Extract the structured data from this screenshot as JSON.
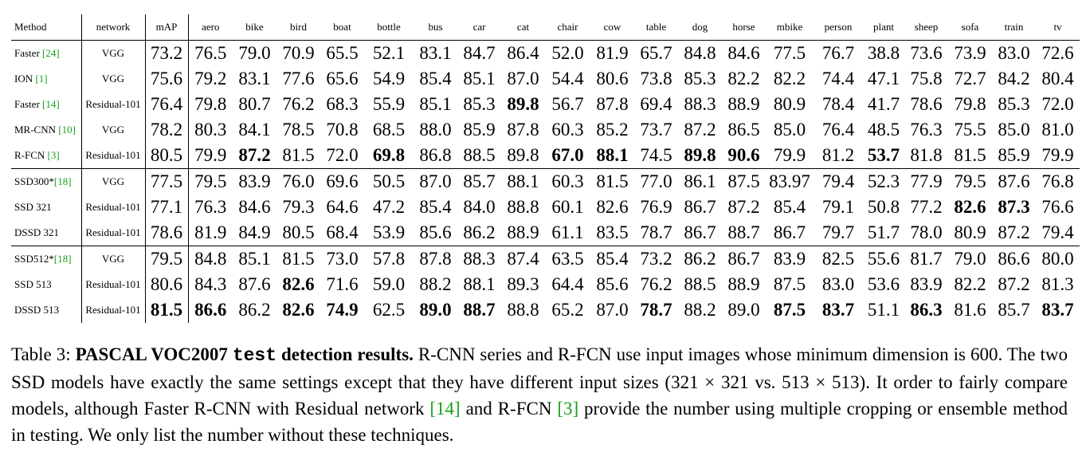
{
  "table": {
    "headers": [
      "Method",
      "network",
      "mAP",
      "aero",
      "bike",
      "bird",
      "boat",
      "bottle",
      "bus",
      "car",
      "cat",
      "chair",
      "cow",
      "table",
      "dog",
      "horse",
      "mbike",
      "person",
      "plant",
      "sheep",
      "sofa",
      "train",
      "tv"
    ],
    "groups": [
      [
        {
          "method": "Faster ",
          "ref": "[24]",
          "network": "VGG",
          "values": [
            "73.2",
            "76.5",
            "79.0",
            "70.9",
            "65.5",
            "52.1",
            "83.1",
            "84.7",
            "86.4",
            "52.0",
            "81.9",
            "65.7",
            "84.8",
            "84.6",
            "77.5",
            "76.7",
            "38.8",
            "73.6",
            "73.9",
            "83.0",
            "72.6"
          ],
          "bold": []
        },
        {
          "method": "ION ",
          "ref": "[1]",
          "network": "VGG",
          "values": [
            "75.6",
            "79.2",
            "83.1",
            "77.6",
            "65.6",
            "54.9",
            "85.4",
            "85.1",
            "87.0",
            "54.4",
            "80.6",
            "73.8",
            "85.3",
            "82.2",
            "82.2",
            "74.4",
            "47.1",
            "75.8",
            "72.7",
            "84.2",
            "80.4"
          ],
          "bold": []
        },
        {
          "method": "Faster ",
          "ref": "[14]",
          "network": "Residual-101",
          "values": [
            "76.4",
            "79.8",
            "80.7",
            "76.2",
            "68.3",
            "55.9",
            "85.1",
            "85.3",
            "89.8",
            "56.7",
            "87.8",
            "69.4",
            "88.3",
            "88.9",
            "80.9",
            "78.4",
            "41.7",
            "78.6",
            "79.8",
            "85.3",
            "72.0"
          ],
          "bold": [
            8
          ]
        },
        {
          "method": "MR-CNN ",
          "ref": "[10]",
          "network": "VGG",
          "values": [
            "78.2",
            "80.3",
            "84.1",
            "78.5",
            "70.8",
            "68.5",
            "88.0",
            "85.9",
            "87.8",
            "60.3",
            "85.2",
            "73.7",
            "87.2",
            "86.5",
            "85.0",
            "76.4",
            "48.5",
            "76.3",
            "75.5",
            "85.0",
            "81.0"
          ],
          "bold": []
        },
        {
          "method": "R-FCN ",
          "ref": "[3]",
          "network": "Residual-101",
          "values": [
            "80.5",
            "79.9",
            "87.2",
            "81.5",
            "72.0",
            "69.8",
            "86.8",
            "88.5",
            "89.8",
            "67.0",
            "88.1",
            "74.5",
            "89.8",
            "90.6",
            "79.9",
            "81.2",
            "53.7",
            "81.8",
            "81.5",
            "85.9",
            "79.9"
          ],
          "bold": [
            2,
            5,
            9,
            10,
            12,
            13,
            16
          ]
        }
      ],
      [
        {
          "method": "SSD300*",
          "ref": "[18]",
          "network": "VGG",
          "values": [
            "77.5",
            "79.5",
            "83.9",
            "76.0",
            "69.6",
            "50.5",
            "87.0",
            "85.7",
            "88.1",
            "60.3",
            "81.5",
            "77.0",
            "86.1",
            "87.5",
            "83.97",
            "79.4",
            "52.3",
            "77.9",
            "79.5",
            "87.6",
            "76.8"
          ],
          "bold": []
        },
        {
          "method": "SSD 321",
          "ref": "",
          "network": "Residual-101",
          "values": [
            "77.1",
            "76.3",
            "84.6",
            "79.3",
            "64.6",
            "47.2",
            "85.4",
            "84.0",
            "88.8",
            "60.1",
            "82.6",
            "76.9",
            "86.7",
            "87.2",
            "85.4",
            "79.1",
            "50.8",
            "77.2",
            "82.6",
            "87.3",
            "76.6"
          ],
          "bold": [
            18,
            19
          ]
        },
        {
          "method": "DSSD 321",
          "ref": "",
          "network": "Residual-101",
          "values": [
            "78.6",
            "81.9",
            "84.9",
            "80.5",
            "68.4",
            "53.9",
            "85.6",
            "86.2",
            "88.9",
            "61.1",
            "83.5",
            "78.7",
            "86.7",
            "88.7",
            "86.7",
            "79.7",
            "51.7",
            "78.0",
            "80.9",
            "87.2",
            "79.4"
          ],
          "bold": []
        }
      ],
      [
        {
          "method": "SSD512*",
          "ref": "[18]",
          "network": "VGG",
          "values": [
            "79.5",
            "84.8",
            "85.1",
            "81.5",
            "73.0",
            "57.8",
            "87.8",
            "88.3",
            "87.4",
            "63.5",
            "85.4",
            "73.2",
            "86.2",
            "86.7",
            "83.9",
            "82.5",
            "55.6",
            "81.7",
            "79.0",
            "86.6",
            "80.0"
          ],
          "bold": []
        },
        {
          "method": "SSD 513",
          "ref": "",
          "network": "Residual-101",
          "values": [
            "80.6",
            "84.3",
            "87.6",
            "82.6",
            "71.6",
            "59.0",
            "88.2",
            "88.1",
            "89.3",
            "64.4",
            "85.6",
            "76.2",
            "88.5",
            "88.9",
            "87.5",
            "83.0",
            "53.6",
            "83.9",
            "82.2",
            "87.2",
            "81.3"
          ],
          "bold": [
            3
          ]
        },
        {
          "method": "DSSD 513",
          "ref": "",
          "network": "Residual-101",
          "values": [
            "81.5",
            "86.6",
            "86.2",
            "82.6",
            "74.9",
            "62.5",
            "89.0",
            "88.7",
            "88.8",
            "65.2",
            "87.0",
            "78.7",
            "88.2",
            "89.0",
            "87.5",
            "83.7",
            "51.1",
            "86.3",
            "81.6",
            "85.7",
            "83.7"
          ],
          "bold": [
            0,
            1,
            3,
            4,
            6,
            7,
            11,
            14,
            15,
            17,
            20
          ]
        }
      ]
    ]
  },
  "caption": {
    "label": "Table 3: ",
    "title_a": "PASCAL VOC2007 ",
    "title_mono": "test",
    "title_b": " detection results.",
    "text_1": " R-CNN series and R-FCN use input images whose minimum dimension is 600. The two SSD models have exactly the same settings except that they have different input sizes (321 × 321 vs. 513 × 513). It order to fairly compare models, although Faster R-CNN with Residual network ",
    "ref_1": "[14]",
    "text_2": " and R-FCN ",
    "ref_2": "[3]",
    "text_3": " provide the number using multiple cropping or ensemble method in testing. We only list the number without these techniques."
  },
  "colors": {
    "reference_link": "#1aa01a"
  }
}
